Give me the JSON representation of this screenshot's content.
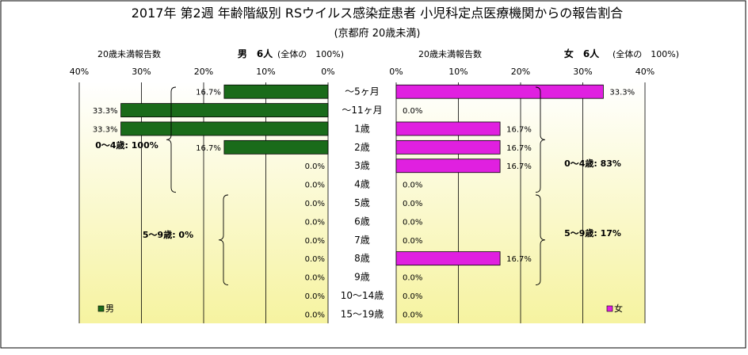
{
  "header": {
    "title": "2017年 第2週 年齢階級別 RSウイルス感染症患者 小児科定点医療機関からの報告割合",
    "subtitle": "(京都府 20歳未満)"
  },
  "colors": {
    "male": "#1a6b1a",
    "female": "#e020e0",
    "plot_bg_top": "#ffffff",
    "plot_bg_bottom": "#f6f3a0"
  },
  "chart_data": [
    {
      "type": "bar",
      "panel": "left",
      "orientation": "horizontal",
      "direction": "right-to-left",
      "header_left": "20歳未満報告数",
      "header_title": "男　6人",
      "header_right": "(全体の　100%)",
      "ticks": [
        "40%",
        "30%",
        "20%",
        "10%",
        "0%"
      ],
      "xlim": [
        0,
        40
      ],
      "categories": [
        "～5ヶ月",
        "～11ヶ月",
        "1歳",
        "2歳",
        "3歳",
        "4歳",
        "5歳",
        "6歳",
        "7歳",
        "8歳",
        "9歳",
        "10～14歳",
        "15～19歳"
      ],
      "series": [
        {
          "name": "男",
          "values": [
            16.7,
            33.3,
            33.3,
            16.7,
            0.0,
            0.0,
            0.0,
            0.0,
            0.0,
            0.0,
            0.0,
            0.0,
            0.0
          ],
          "labels": [
            "16.7%",
            "33.3%",
            "33.3%",
            "16.7%",
            "0.0%",
            "0.0%",
            "0.0%",
            "0.0%",
            "0.0%",
            "0.0%",
            "0.0%",
            "0.0%",
            "0.0%"
          ]
        }
      ],
      "annotations": [
        {
          "text": "0～4歳: 100%",
          "from": 0,
          "to": 5
        },
        {
          "text": "5～9歳: 0%",
          "from": 6,
          "to": 10
        }
      ],
      "legend": {
        "label": "男",
        "position": "bottom-left"
      }
    },
    {
      "type": "bar",
      "panel": "right",
      "orientation": "horizontal",
      "direction": "left-to-right",
      "header_left": "20歳未満報告数",
      "header_title": "女　6人",
      "header_right": "(全体の　100%)",
      "ticks": [
        "0%",
        "10%",
        "20%",
        "30%",
        "40%"
      ],
      "xlim": [
        0,
        40
      ],
      "categories": [
        "～5ヶ月",
        "～11ヶ月",
        "1歳",
        "2歳",
        "3歳",
        "4歳",
        "5歳",
        "6歳",
        "7歳",
        "8歳",
        "9歳",
        "10～14歳",
        "15～19歳"
      ],
      "series": [
        {
          "name": "女",
          "values": [
            33.3,
            0.0,
            16.7,
            16.7,
            16.7,
            0.0,
            0.0,
            0.0,
            0.0,
            16.7,
            0.0,
            0.0,
            0.0
          ],
          "labels": [
            "33.3%",
            "0.0%",
            "16.7%",
            "16.7%",
            "16.7%",
            "0.0%",
            "0.0%",
            "0.0%",
            "0.0%",
            "16.7%",
            "0.0%",
            "0.0%",
            "0.0%"
          ]
        }
      ],
      "annotations": [
        {
          "text": "0～4歳: 83%",
          "from": 0,
          "to": 5
        },
        {
          "text": "5～9歳: 17%",
          "from": 6,
          "to": 10
        }
      ],
      "legend": {
        "label": "女",
        "position": "bottom-right"
      }
    }
  ]
}
